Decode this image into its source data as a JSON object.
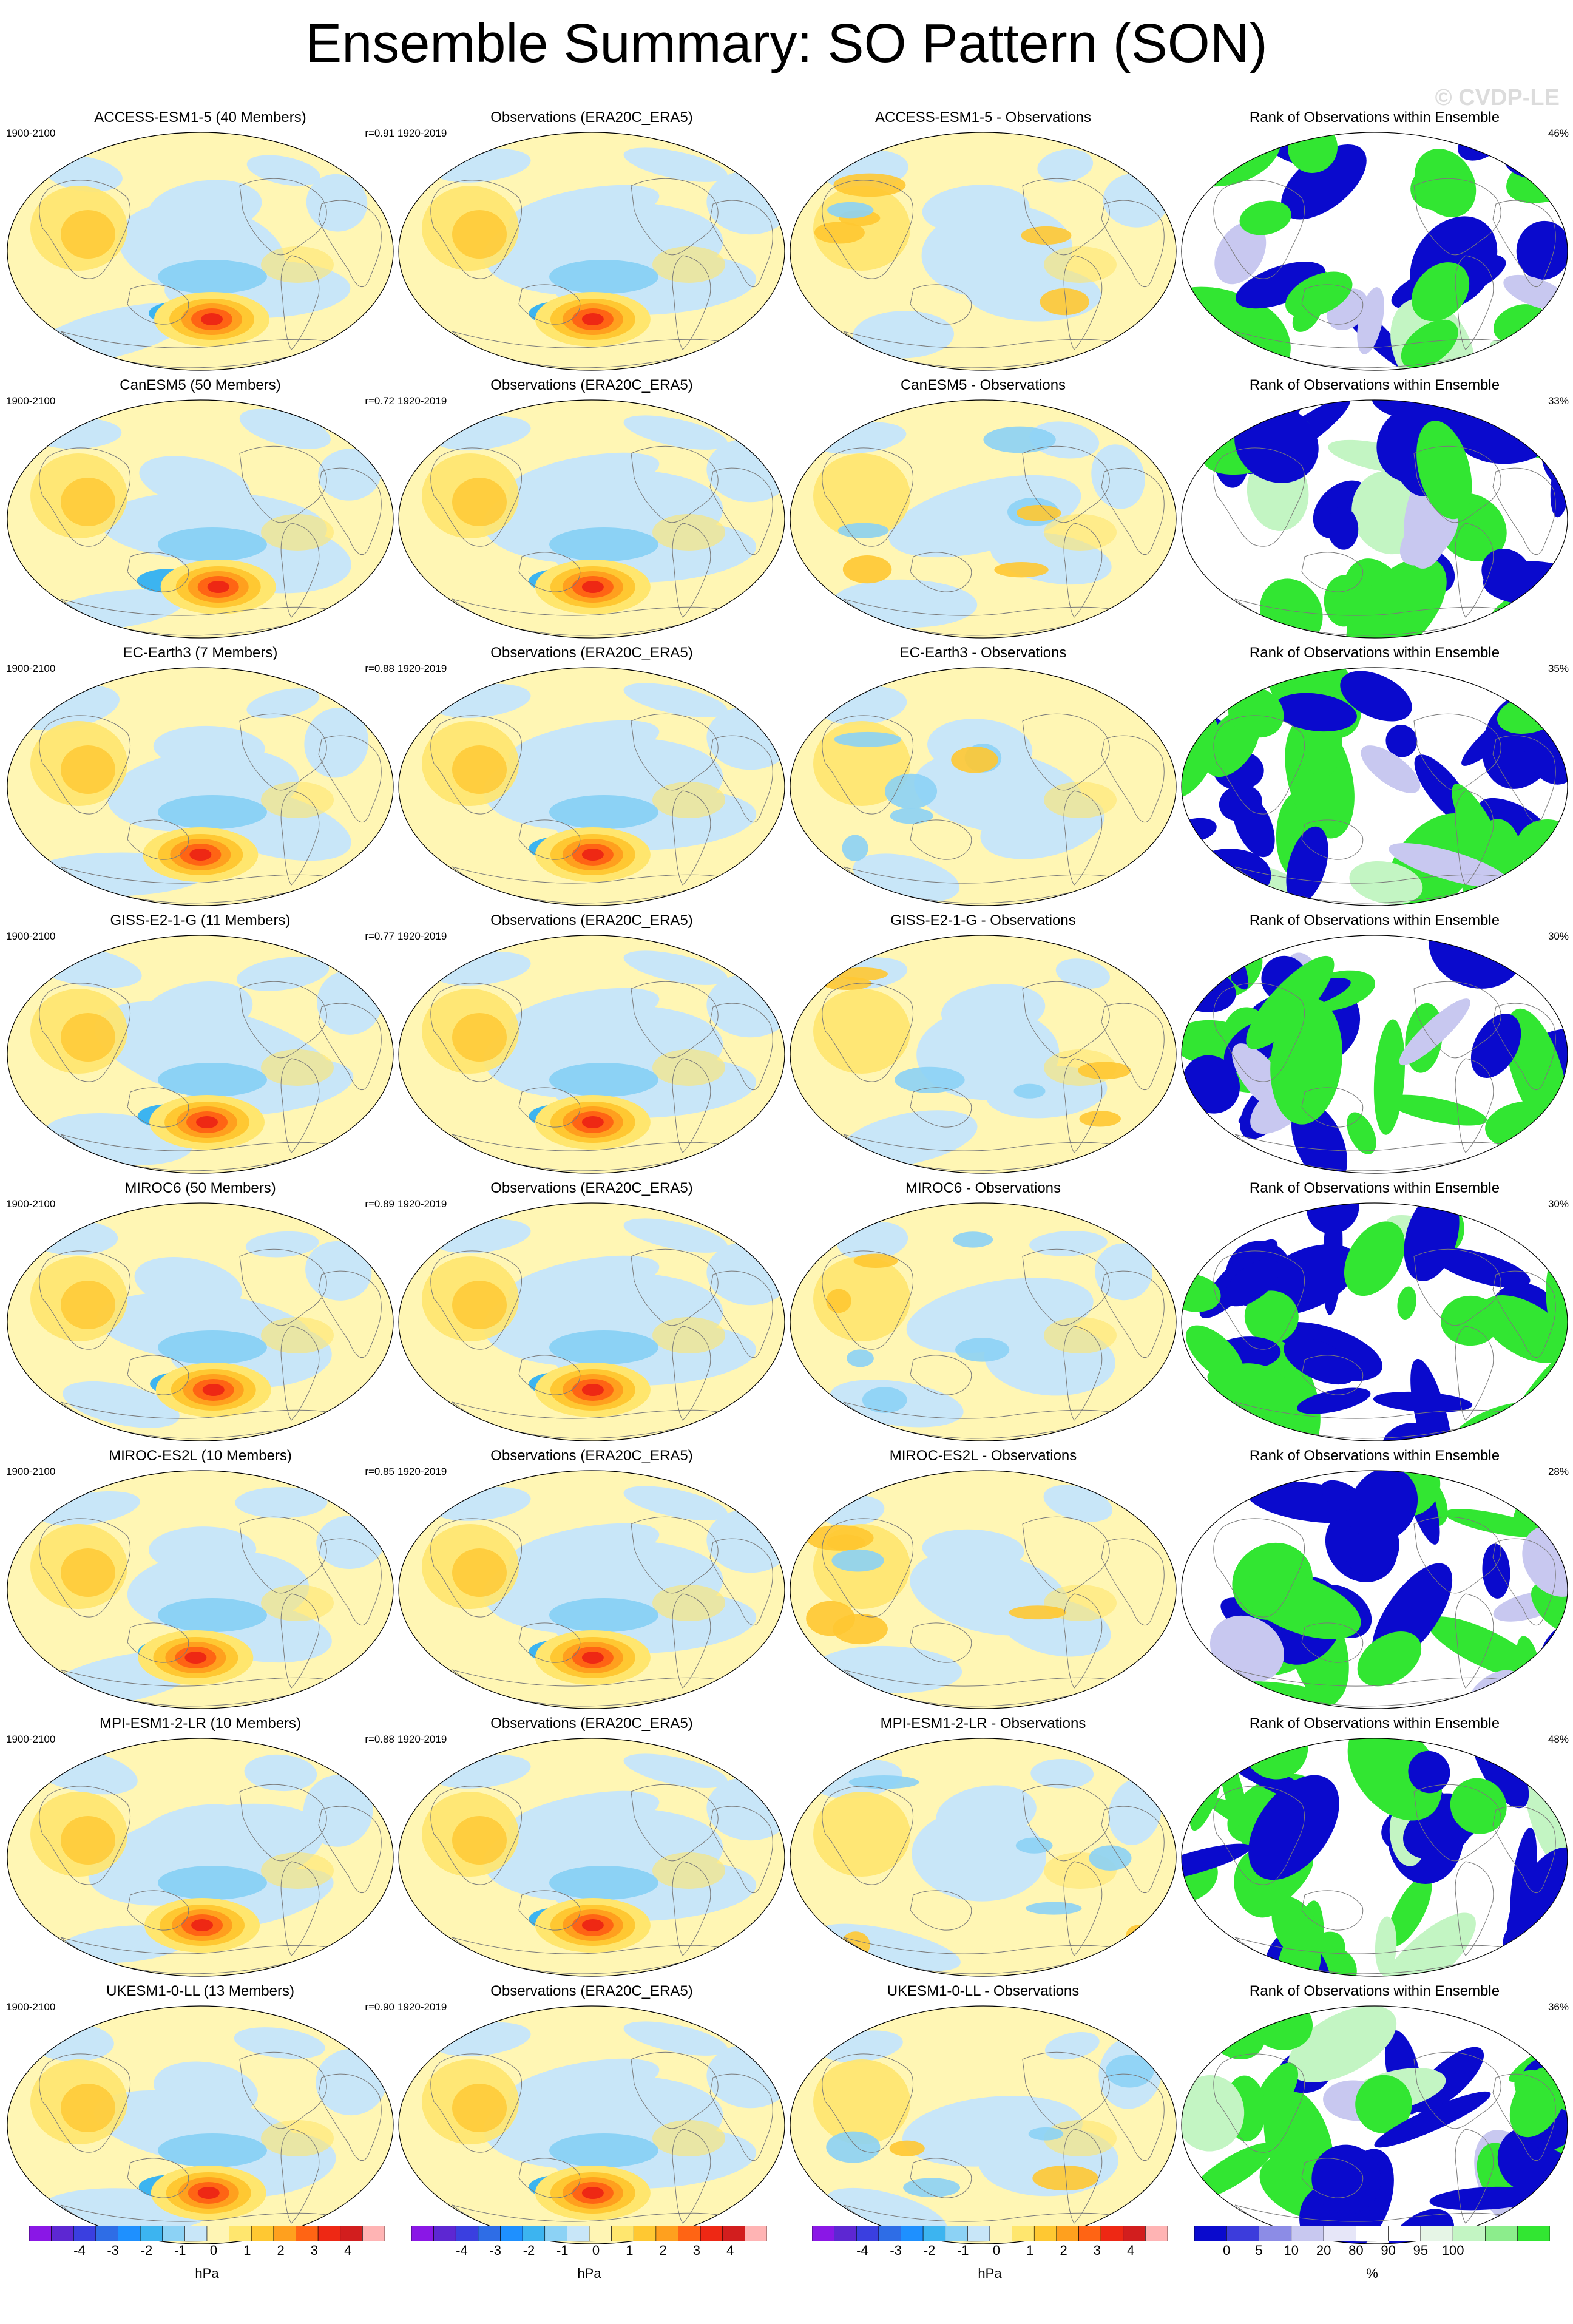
{
  "title": "Ensemble Summary: SO Pattern (SON)",
  "watermark": "© CVDP-LE",
  "colors": {
    "div": [
      "#8a17e6",
      "#5d27d2",
      "#3a3fe0",
      "#2e6de6",
      "#1e90ff",
      "#3cb4f0",
      "#8cd2f5",
      "#c8e6f8",
      "#fff5b4",
      "#ffe66e",
      "#ffc832",
      "#ffa01e",
      "#ff6414",
      "#ee2814",
      "#d21e1e",
      "#ffb4b4"
    ],
    "rank": [
      "#0a0acd",
      "#3c3cdc",
      "#8c8ce6",
      "#c8c8f0",
      "#e6e6f8",
      "#ffffff",
      "#ffffff",
      "#e6f5e6",
      "#c3f5c3",
      "#8ced8c",
      "#32e632"
    ],
    "ocean_neg": "#bedcf0",
    "ocean_pos": "#fff6b4",
    "land": "#7a7a7a"
  },
  "rows": [
    {
      "model": {
        "title": "ACCESS-ESM1-5 (40 Members)",
        "period": "1900-2100",
        "r": "r=0.91"
      },
      "obs": {
        "title": "Observations (ERA20C_ERA5)",
        "period": "1920-2019"
      },
      "diff": {
        "title": "ACCESS-ESM1-5 - Observations"
      },
      "rank": {
        "title": "Rank of Observations within Ensemble",
        "pct": "46%"
      }
    },
    {
      "model": {
        "title": "CanESM5 (50 Members)",
        "period": "1900-2100",
        "r": "r=0.72"
      },
      "obs": {
        "title": "Observations (ERA20C_ERA5)",
        "period": "1920-2019"
      },
      "diff": {
        "title": "CanESM5 - Observations"
      },
      "rank": {
        "title": "Rank of Observations within Ensemble",
        "pct": "33%"
      }
    },
    {
      "model": {
        "title": "EC-Earth3 (7 Members)",
        "period": "1900-2100",
        "r": "r=0.88"
      },
      "obs": {
        "title": "Observations (ERA20C_ERA5)",
        "period": "1920-2019"
      },
      "diff": {
        "title": "EC-Earth3 - Observations"
      },
      "rank": {
        "title": "Rank of Observations within Ensemble",
        "pct": "35%"
      }
    },
    {
      "model": {
        "title": "GISS-E2-1-G (11 Members)",
        "period": "1900-2100",
        "r": "r=0.77"
      },
      "obs": {
        "title": "Observations (ERA20C_ERA5)",
        "period": "1920-2019"
      },
      "diff": {
        "title": "GISS-E2-1-G - Observations"
      },
      "rank": {
        "title": "Rank of Observations within Ensemble",
        "pct": "30%"
      }
    },
    {
      "model": {
        "title": "MIROC6 (50 Members)",
        "period": "1900-2100",
        "r": "r=0.89"
      },
      "obs": {
        "title": "Observations (ERA20C_ERA5)",
        "period": "1920-2019"
      },
      "diff": {
        "title": "MIROC6 - Observations"
      },
      "rank": {
        "title": "Rank of Observations within Ensemble",
        "pct": "30%"
      }
    },
    {
      "model": {
        "title": "MIROC-ES2L (10 Members)",
        "period": "1900-2100",
        "r": "r=0.85"
      },
      "obs": {
        "title": "Observations (ERA20C_ERA5)",
        "period": "1920-2019"
      },
      "diff": {
        "title": "MIROC-ES2L - Observations"
      },
      "rank": {
        "title": "Rank of Observations within Ensemble",
        "pct": "28%"
      }
    },
    {
      "model": {
        "title": "MPI-ESM1-2-LR (10 Members)",
        "period": "1900-2100",
        "r": "r=0.88"
      },
      "obs": {
        "title": "Observations (ERA20C_ERA5)",
        "period": "1920-2019"
      },
      "diff": {
        "title": "MPI-ESM1-2-LR - Observations"
      },
      "rank": {
        "title": "Rank of Observations within Ensemble",
        "pct": "48%"
      }
    },
    {
      "model": {
        "title": "UKESM1-0-LL (13 Members)",
        "period": "1900-2100",
        "r": "r=0.90"
      },
      "obs": {
        "title": "Observations (ERA20C_ERA5)",
        "period": "1920-2019"
      },
      "diff": {
        "title": "UKESM1-0-LL - Observations"
      },
      "rank": {
        "title": "Rank of Observations within Ensemble",
        "pct": "36%"
      }
    }
  ],
  "colorbars": [
    {
      "ticks": [
        "-4",
        "-3",
        "-2",
        "-1",
        "0",
        "1",
        "2",
        "3",
        "4"
      ],
      "units": "hPa"
    },
    {
      "ticks": [
        "-4",
        "-3",
        "-2",
        "-1",
        "0",
        "1",
        "2",
        "3",
        "4"
      ],
      "units": "hPa"
    },
    {
      "ticks": [
        "-4",
        "-3",
        "-2",
        "-1",
        "0",
        "1",
        "2",
        "3",
        "4"
      ],
      "units": "hPa"
    },
    {
      "ticks": [
        "0",
        "5",
        "10",
        "20",
        "80",
        "90",
        "95",
        "100"
      ],
      "units": "%"
    }
  ]
}
